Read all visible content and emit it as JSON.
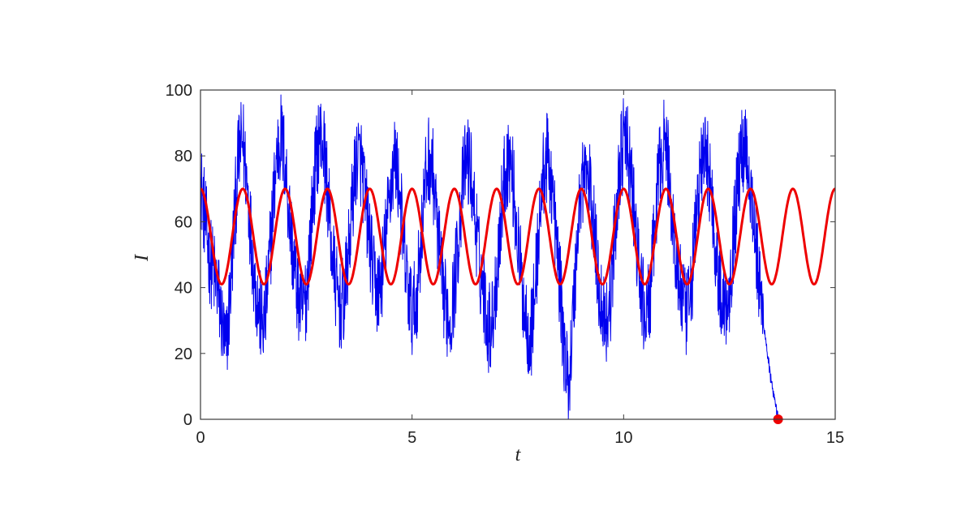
{
  "chart_data": {
    "type": "line",
    "title": "",
    "xlabel": "t",
    "ylabel": "I",
    "xlim": [
      0,
      15
    ],
    "ylim": [
      0,
      100
    ],
    "xticks": [
      0,
      5,
      10,
      15
    ],
    "yticks": [
      0,
      20,
      40,
      60,
      80,
      100
    ],
    "xtick_labels": [
      "0",
      "5",
      "10",
      "15"
    ],
    "ytick_labels": [
      "0",
      "20",
      "40",
      "60",
      "80",
      "100"
    ],
    "grid": false,
    "series": [
      {
        "color": "#0000ee",
        "style": "noisy",
        "x": [
          0.0,
          0.1,
          0.2,
          0.3,
          0.4,
          0.5,
          0.6,
          0.7,
          0.8,
          0.9,
          1.0,
          1.1,
          1.2,
          1.3,
          1.4,
          1.5,
          1.6,
          1.7,
          1.8,
          1.9,
          2.0,
          2.1,
          2.2,
          2.3,
          2.4,
          2.5,
          2.6,
          2.7,
          2.8,
          2.9,
          3.0,
          3.1,
          3.2,
          3.3,
          3.4,
          3.5,
          3.6,
          3.7,
          3.8,
          3.9,
          4.0,
          4.1,
          4.2,
          4.3,
          4.4,
          4.5,
          4.6,
          4.7,
          4.8,
          4.9,
          5.0,
          5.1,
          5.2,
          5.3,
          5.4,
          5.5,
          5.6,
          5.7,
          5.8,
          5.9,
          6.0,
          6.1,
          6.2,
          6.3,
          6.4,
          6.5,
          6.6,
          6.7,
          6.8,
          6.9,
          7.0,
          7.1,
          7.2,
          7.3,
          7.4,
          7.5,
          7.6,
          7.7,
          7.8,
          7.9,
          8.0,
          8.1,
          8.2,
          8.3,
          8.4,
          8.5,
          8.6,
          8.7,
          8.8,
          8.9,
          9.0,
          9.1,
          9.2,
          9.3,
          9.4,
          9.5,
          9.6,
          9.7,
          9.8,
          9.9,
          10.0,
          10.1,
          10.2,
          10.3,
          10.4,
          10.5,
          10.6,
          10.7,
          10.8,
          10.9,
          11.0,
          11.1,
          11.2,
          11.3,
          11.4,
          11.5,
          11.6,
          11.7,
          11.8,
          11.9,
          12.0,
          12.1,
          12.2,
          12.3,
          12.4,
          12.5,
          12.6,
          12.7,
          12.8,
          12.9,
          13.0,
          13.1,
          13.2,
          13.3,
          13.4,
          13.5,
          13.6,
          13.65
        ],
        "y": [
          72,
          62,
          50,
          45,
          40,
          30,
          20,
          38,
          60,
          80,
          85,
          72,
          55,
          40,
          32,
          28,
          42,
          62,
          80,
          86,
          78,
          62,
          48,
          38,
          32,
          38,
          56,
          74,
          86,
          84,
          70,
          52,
          40,
          34,
          36,
          50,
          68,
          80,
          78,
          66,
          54,
          42,
          38,
          45,
          58,
          72,
          80,
          70,
          52,
          40,
          32,
          36,
          52,
          70,
          80,
          74,
          58,
          42,
          34,
          30,
          40,
          56,
          72,
          80,
          74,
          60,
          46,
          38,
          28,
          30,
          44,
          62,
          76,
          80,
          70,
          54,
          40,
          30,
          24,
          38,
          58,
          74,
          80,
          72,
          56,
          40,
          20,
          10,
          30,
          54,
          72,
          76,
          70,
          58,
          42,
          34,
          30,
          38,
          58,
          76,
          84,
          82,
          70,
          54,
          40,
          32,
          34,
          50,
          70,
          82,
          84,
          70,
          54,
          42,
          36,
          30,
          40,
          58,
          74,
          80,
          78,
          64,
          48,
          38,
          34,
          40,
          56,
          72,
          82,
          84,
          70,
          58,
          40,
          30,
          20,
          10,
          3,
          0
        ]
      },
      {
        "color": "#ee0000",
        "style": "sine",
        "x": [
          0.0,
          0.25,
          0.5,
          0.75,
          1.0,
          1.25,
          1.5,
          1.75,
          2.0,
          2.25,
          2.5,
          2.75,
          3.0,
          3.25,
          3.5,
          3.75,
          4.0,
          4.25,
          4.5,
          4.75,
          5.0,
          5.25,
          5.5,
          5.75,
          6.0,
          6.25,
          6.5,
          6.75,
          7.0,
          7.25,
          7.5,
          7.75,
          8.0,
          8.25,
          8.5,
          8.75,
          9.0,
          9.25,
          9.5,
          9.75,
          10.0,
          10.25,
          10.5,
          10.75,
          11.0,
          11.25,
          11.5,
          11.75,
          12.0,
          12.25,
          12.5,
          12.75,
          13.0,
          13.25,
          13.5,
          13.75,
          14.0,
          14.25,
          14.5,
          14.75,
          15.0
        ],
        "y": [
          70,
          55.5,
          41,
          55.5,
          70,
          55.5,
          41,
          55.5,
          70,
          55.5,
          41,
          55.5,
          70,
          55.5,
          41,
          55.5,
          70,
          55.5,
          41,
          55.5,
          70,
          55.5,
          41,
          55.5,
          70,
          55.5,
          41,
          55.5,
          70,
          55.5,
          41,
          55.5,
          70,
          55.5,
          41,
          55.5,
          70,
          55.5,
          41,
          55.5,
          70,
          55.5,
          41,
          55.5,
          70,
          55.5,
          41,
          55.5,
          70,
          55.5,
          41,
          55.5,
          70,
          55.5,
          41,
          55.5,
          70,
          55.5,
          41,
          55.5,
          70
        ]
      }
    ],
    "annotations": [
      {
        "type": "marker",
        "x": 13.65,
        "y": 0,
        "color": "#ee0000"
      }
    ]
  }
}
